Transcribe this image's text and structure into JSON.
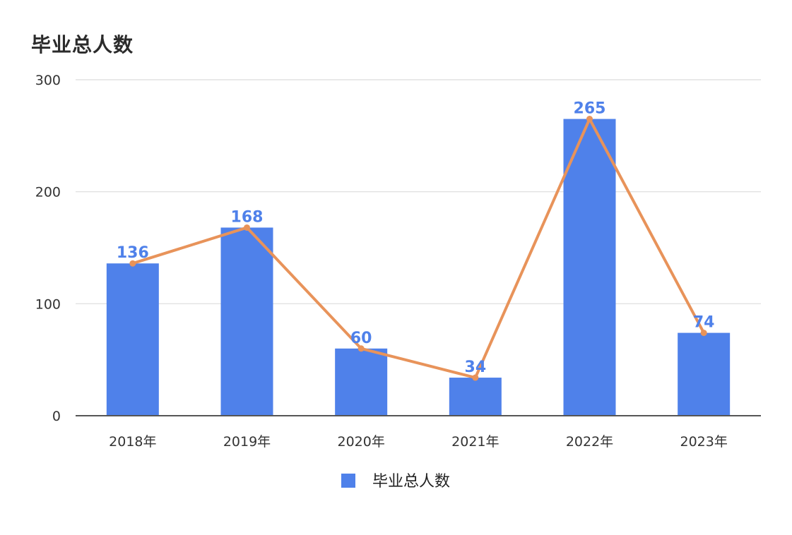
{
  "chart_data": {
    "type": "bar",
    "title": "毕业总人数",
    "xlabel": "",
    "ylabel": "",
    "categories": [
      "2018年",
      "2019年",
      "2020年",
      "2021年",
      "2022年",
      "2023年"
    ],
    "series": [
      {
        "name": "毕业总人数",
        "values": [
          136,
          168,
          60,
          34,
          265,
          74
        ],
        "color": "#4f81ea",
        "render": "bar"
      },
      {
        "values": [
          136,
          168,
          60,
          34,
          265,
          74
        ],
        "color": "#e8935a",
        "render": "line"
      }
    ],
    "ylim": [
      0,
      300
    ],
    "yticks": [
      0,
      100,
      200,
      300
    ],
    "grid": true,
    "legend": "bottom-center",
    "data_labels": true
  }
}
